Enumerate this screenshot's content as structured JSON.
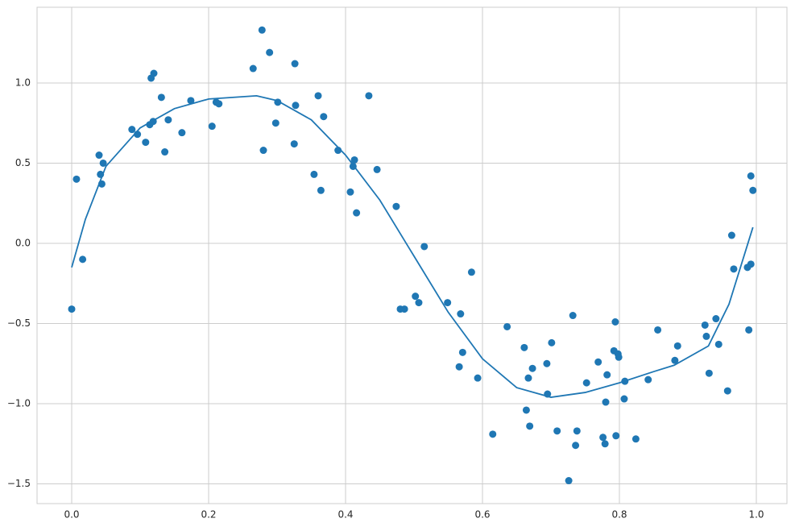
{
  "chart_data": {
    "type": "scatter",
    "xlim": [
      -0.0506,
      1.0447
    ],
    "ylim": [
      -1.623,
      1.472
    ],
    "xticks": [
      {
        "value": 0,
        "label": "0.0"
      },
      {
        "value": 0.2,
        "label": "0.2"
      },
      {
        "value": 0.4,
        "label": "0.4"
      },
      {
        "value": 0.6,
        "label": "0.6"
      },
      {
        "value": 0.8,
        "label": "0.8"
      },
      {
        "value": 1,
        "label": "1.0"
      }
    ],
    "yticks": [
      {
        "value": -1.5,
        "label": "−1.5"
      },
      {
        "value": -1,
        "label": "−1.0"
      },
      {
        "value": -0.5,
        "label": "−0.5"
      },
      {
        "value": 0,
        "label": "0.0"
      },
      {
        "value": 0.5,
        "label": "0.5"
      },
      {
        "value": 1,
        "label": "1.0"
      }
    ],
    "grid": true,
    "series": [
      {
        "type": "scatter",
        "color": "#1f77b4",
        "x": [
          0.0,
          0.007,
          0.016,
          0.04,
          0.042,
          0.046,
          0.044,
          0.088,
          0.096,
          0.108,
          0.114,
          0.116,
          0.12,
          0.119,
          0.131,
          0.136,
          0.141,
          0.161,
          0.174,
          0.205,
          0.211,
          0.215,
          0.265,
          0.278,
          0.28,
          0.289,
          0.298,
          0.301,
          0.325,
          0.326,
          0.327,
          0.354,
          0.36,
          0.364,
          0.368,
          0.389,
          0.407,
          0.411,
          0.413,
          0.416,
          0.434,
          0.446,
          0.474,
          0.48,
          0.486,
          0.502,
          0.507,
          0.515,
          0.549,
          0.566,
          0.568,
          0.571,
          0.584,
          0.593,
          0.615,
          0.636,
          0.661,
          0.664,
          0.667,
          0.669,
          0.673,
          0.694,
          0.695,
          0.701,
          0.709,
          0.726,
          0.732,
          0.736,
          0.738,
          0.752,
          0.769,
          0.776,
          0.779,
          0.78,
          0.782,
          0.792,
          0.794,
          0.795,
          0.798,
          0.799,
          0.807,
          0.808,
          0.824,
          0.842,
          0.856,
          0.881,
          0.885,
          0.925,
          0.927,
          0.931,
          0.941,
          0.945,
          0.958,
          0.964,
          0.967,
          0.987,
          0.989,
          0.992,
          0.992,
          0.995
        ],
        "values": [
          -0.41,
          0.4,
          -0.1,
          0.55,
          0.43,
          0.5,
          0.37,
          0.71,
          0.68,
          0.63,
          0.74,
          1.03,
          1.06,
          0.76,
          0.91,
          0.57,
          0.77,
          0.69,
          0.89,
          0.73,
          0.88,
          0.87,
          1.09,
          1.33,
          0.58,
          1.19,
          0.75,
          0.88,
          0.62,
          1.12,
          0.86,
          0.43,
          0.92,
          0.33,
          0.79,
          0.58,
          0.32,
          0.48,
          0.52,
          0.19,
          0.92,
          0.46,
          0.23,
          -0.41,
          -0.41,
          -0.33,
          -0.37,
          -0.02,
          -0.37,
          -0.77,
          -0.44,
          -0.68,
          -0.18,
          -0.84,
          -1.19,
          -0.52,
          -0.65,
          -1.04,
          -0.84,
          -1.14,
          -0.78,
          -0.75,
          -0.94,
          -0.62,
          -1.17,
          -1.48,
          -0.45,
          -1.26,
          -1.17,
          -0.87,
          -0.74,
          -1.21,
          -1.25,
          -0.99,
          -0.82,
          -0.67,
          -0.49,
          -1.2,
          -0.69,
          -0.71,
          -0.97,
          -0.86,
          -1.22,
          -0.85,
          -0.54,
          -0.73,
          -0.64,
          -0.51,
          -0.58,
          -0.81,
          -0.47,
          -0.63,
          -0.92,
          0.05,
          -0.16,
          -0.15,
          -0.54,
          0.42,
          -0.13,
          0.33
        ]
      },
      {
        "type": "line",
        "color": "#1f77b4",
        "x": [
          0,
          0.02,
          0.05,
          0.1,
          0.15,
          0.2,
          0.27,
          0.3,
          0.35,
          0.4,
          0.45,
          0.5,
          0.55,
          0.6,
          0.65,
          0.7,
          0.75,
          0.8,
          0.85,
          0.88,
          0.93,
          0.96,
          0.995
        ],
        "values": [
          -0.15,
          0.15,
          0.48,
          0.72,
          0.84,
          0.9,
          0.92,
          0.89,
          0.77,
          0.55,
          0.27,
          -0.08,
          -0.43,
          -0.72,
          -0.9,
          -0.96,
          -0.93,
          -0.87,
          -0.8,
          -0.76,
          -0.64,
          -0.38,
          0.1
        ]
      }
    ]
  }
}
